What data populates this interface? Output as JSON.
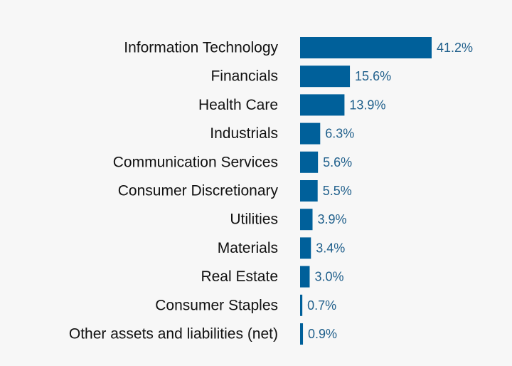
{
  "chart_data": {
    "type": "bar",
    "orientation": "horizontal",
    "categories": [
      "Information Technology",
      "Financials",
      "Health Care",
      "Industrials",
      "Communication Services",
      "Consumer Discretionary",
      "Utilities",
      "Materials",
      "Real Estate",
      "Consumer Staples",
      "Other assets and liabilities (net)"
    ],
    "values": [
      41.2,
      15.6,
      13.9,
      6.3,
      5.6,
      5.5,
      3.9,
      3.4,
      3.0,
      0.7,
      0.9
    ],
    "value_labels": [
      "41.2%",
      "15.6%",
      "13.9%",
      "6.3%",
      "5.6%",
      "5.5%",
      "3.9%",
      "3.4%",
      "3.0%",
      "0.7%",
      "0.9%"
    ],
    "title": "",
    "xlabel": "",
    "ylabel": "",
    "xlim": [
      0,
      41.2
    ],
    "grid": false,
    "legend": "none",
    "bar_color": "#00609a",
    "label_color": "#1f5f8b"
  }
}
